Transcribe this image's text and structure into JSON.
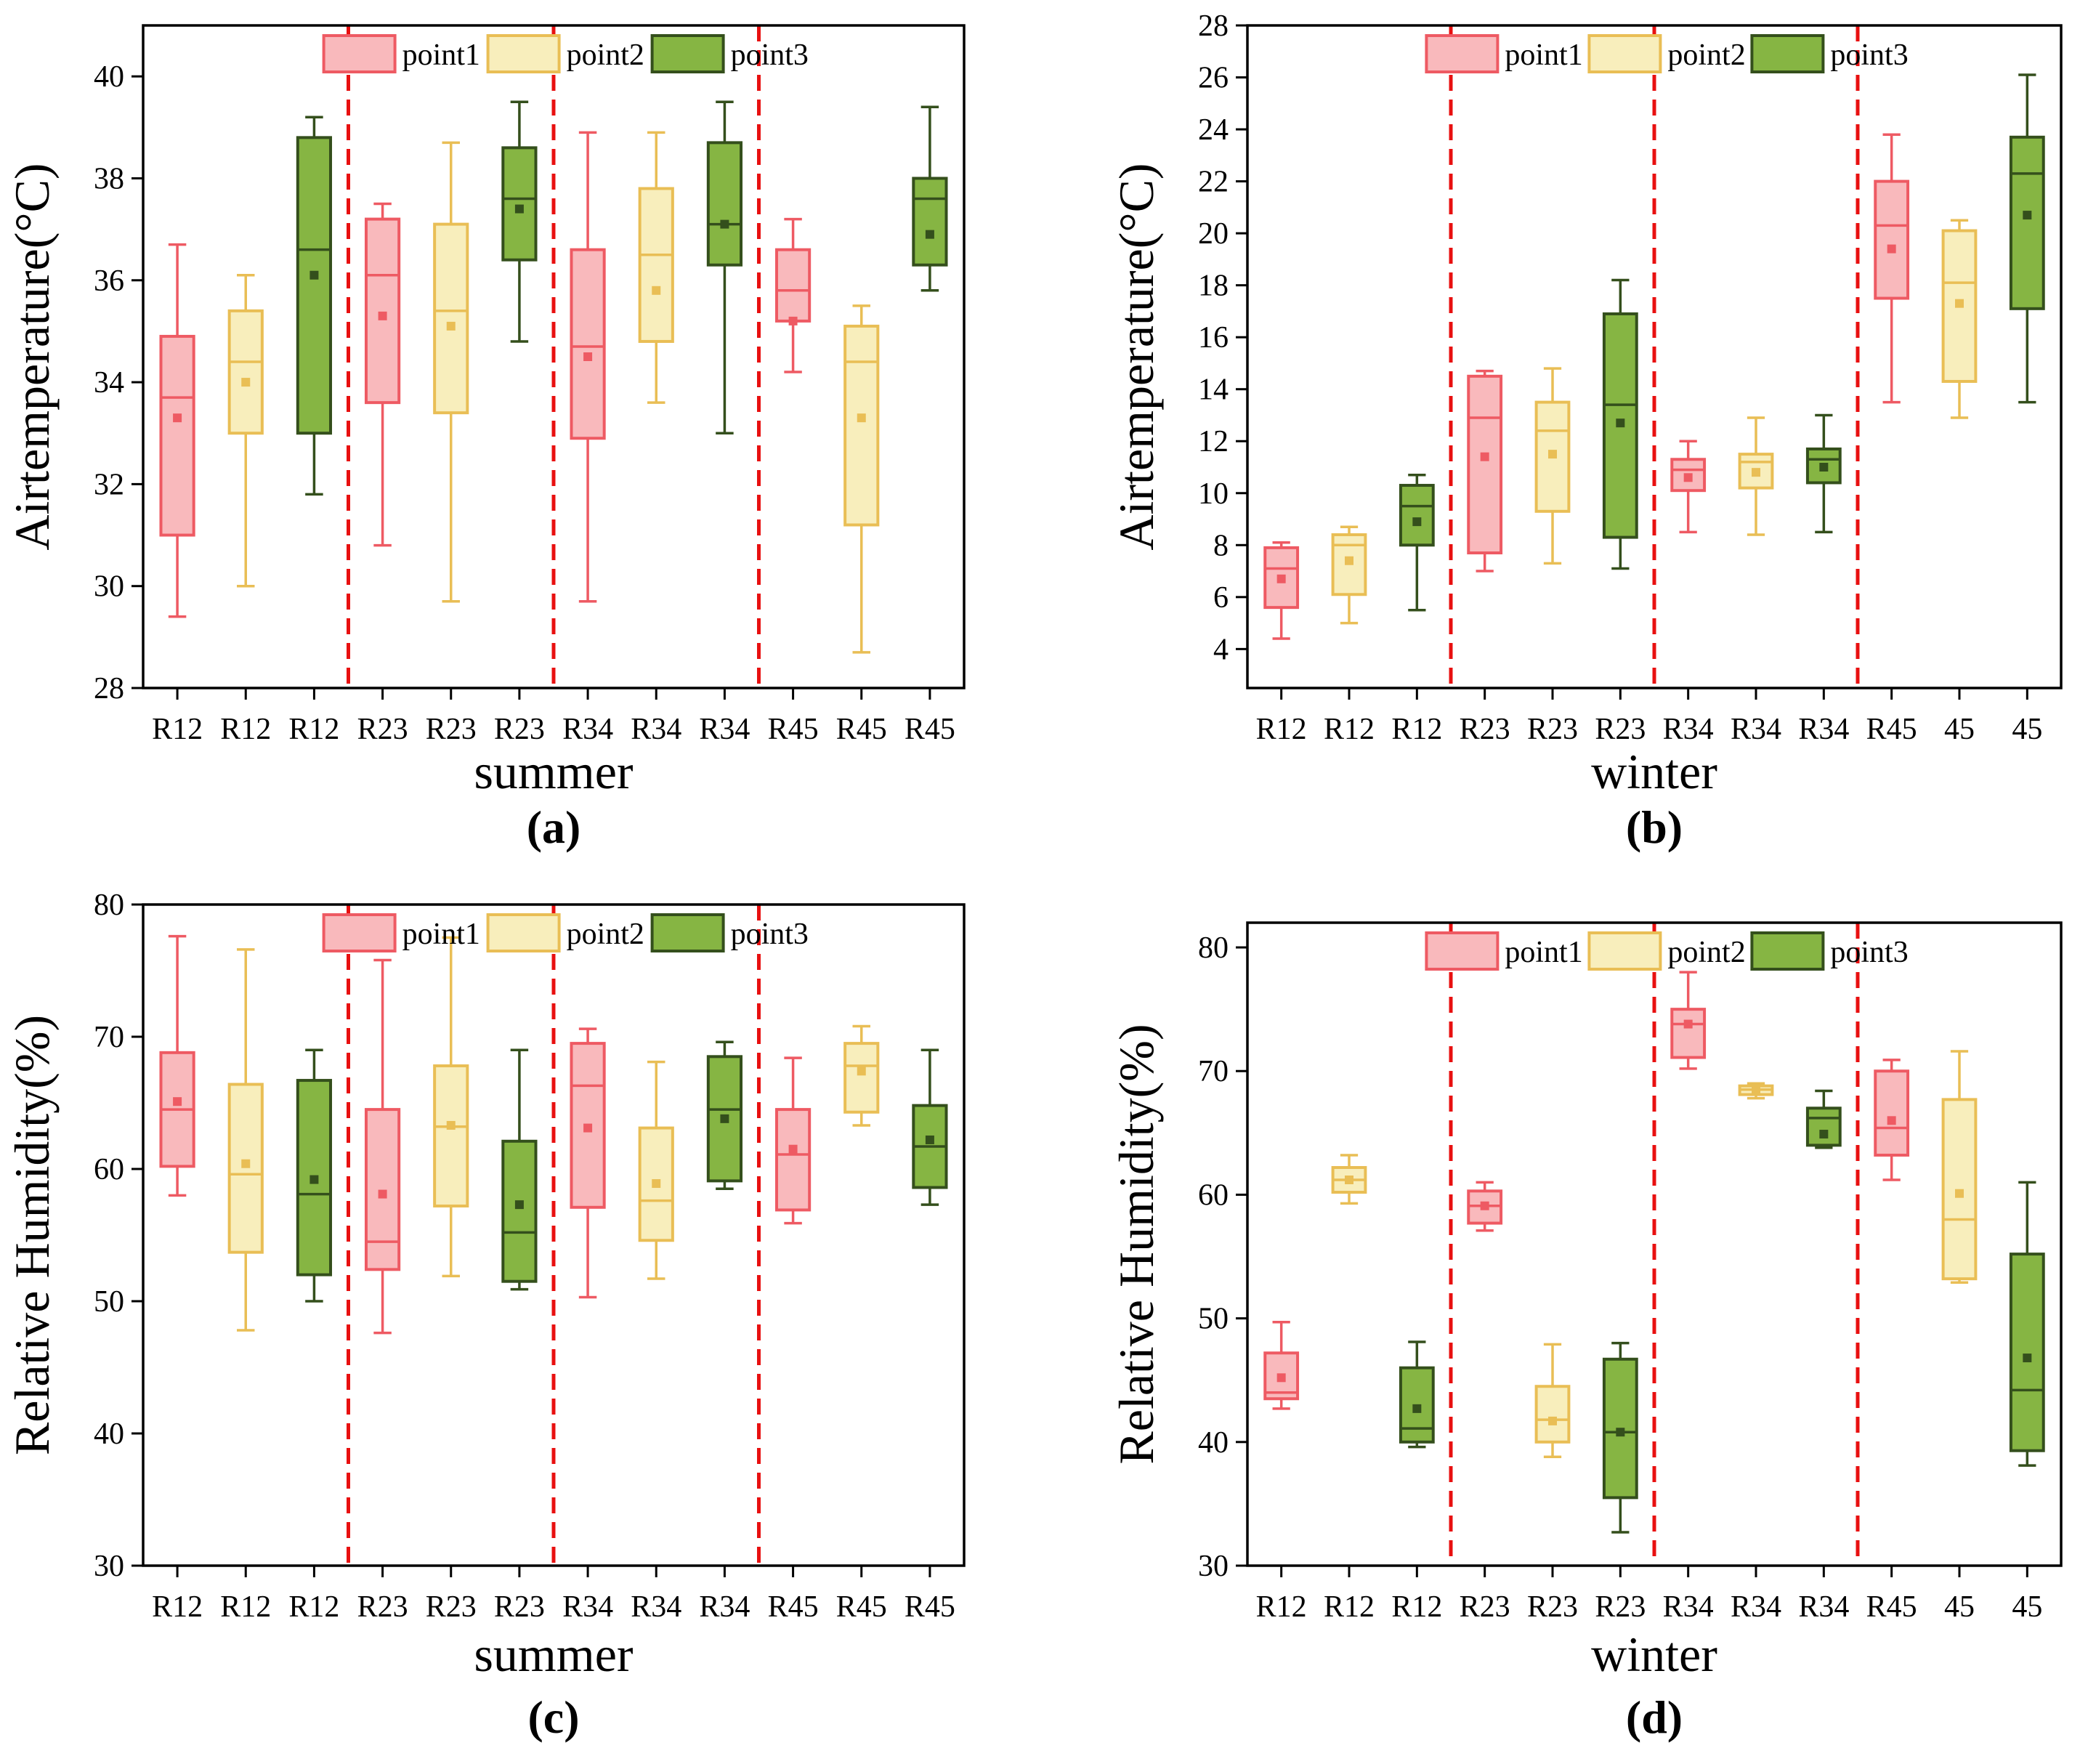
{
  "colors": {
    "point1_fill": "#F9B9BC",
    "point1_stroke": "#EE5A63",
    "point2_fill": "#F8EEBC",
    "point2_stroke": "#E9BE55",
    "point3_fill": "#86B543",
    "point3_stroke": "#344F1C",
    "separator": "#E81010",
    "axis": "#000000"
  },
  "chart_data": [
    {
      "id": "a",
      "type": "box",
      "caption": "(a)",
      "xlabel": "summer",
      "ylabel": "Airtemperature(°C)",
      "ylim": [
        28,
        41
      ],
      "yticks": [
        28,
        30,
        32,
        34,
        36,
        38,
        40
      ],
      "categories": [
        "R12",
        "R12",
        "R12",
        "R23",
        "R23",
        "R23",
        "R34",
        "R34",
        "R34",
        "R45",
        "R45",
        "R45"
      ],
      "legend": [
        "point1",
        "point2",
        "point3"
      ],
      "separators_after": [
        3,
        6,
        9
      ],
      "boxes": [
        {
          "series": "point1",
          "min": 29.4,
          "q1": 31.0,
          "median": 33.7,
          "q3": 34.9,
          "max": 36.7,
          "mean": 33.3
        },
        {
          "series": "point2",
          "min": 30.0,
          "q1": 33.0,
          "median": 34.4,
          "q3": 35.4,
          "max": 36.1,
          "mean": 34.0
        },
        {
          "series": "point3",
          "min": 31.8,
          "q1": 33.0,
          "median": 36.6,
          "q3": 38.8,
          "max": 39.2,
          "mean": 36.1
        },
        {
          "series": "point1",
          "min": 30.8,
          "q1": 33.6,
          "median": 36.1,
          "q3": 37.2,
          "max": 37.5,
          "mean": 35.3
        },
        {
          "series": "point2",
          "min": 29.7,
          "q1": 33.4,
          "median": 35.4,
          "q3": 37.1,
          "max": 38.7,
          "mean": 35.1
        },
        {
          "series": "point3",
          "min": 34.8,
          "q1": 36.4,
          "median": 37.6,
          "q3": 38.6,
          "max": 39.5,
          "mean": 37.4
        },
        {
          "series": "point1",
          "min": 29.7,
          "q1": 32.9,
          "median": 34.7,
          "q3": 36.6,
          "max": 38.9,
          "mean": 34.5
        },
        {
          "series": "point2",
          "min": 33.6,
          "q1": 34.8,
          "median": 36.5,
          "q3": 37.8,
          "max": 38.9,
          "mean": 35.8
        },
        {
          "series": "point3",
          "min": 33.0,
          "q1": 36.3,
          "median": 37.1,
          "q3": 38.7,
          "max": 39.5,
          "mean": 37.1
        },
        {
          "series": "point1",
          "min": 34.2,
          "q1": 35.2,
          "median": 35.8,
          "q3": 36.6,
          "max": 37.2,
          "mean": 35.2
        },
        {
          "series": "point2",
          "min": 28.7,
          "q1": 31.2,
          "median": 34.4,
          "q3": 35.1,
          "max": 35.5,
          "mean": 33.3
        },
        {
          "series": "point3",
          "min": 35.8,
          "q1": 36.3,
          "median": 37.6,
          "q3": 38.0,
          "max": 39.4,
          "mean": 36.9
        }
      ]
    },
    {
      "id": "b",
      "type": "box",
      "caption": "(b)",
      "xlabel": "winter",
      "ylabel": "Airtemperature(°C)",
      "ylim": [
        2.5,
        28
      ],
      "yticks": [
        4,
        6,
        8,
        10,
        12,
        14,
        16,
        18,
        20,
        22,
        24,
        26,
        28
      ],
      "categories": [
        "R12",
        "R12",
        "R12",
        "R23",
        "R23",
        "R23",
        "R34",
        "R34",
        "R34",
        "R45",
        "45",
        "45"
      ],
      "legend": [
        "point1",
        "point2",
        "point3"
      ],
      "separators_after": [
        3,
        6,
        9
      ],
      "boxes": [
        {
          "series": "point1",
          "min": 4.4,
          "q1": 5.6,
          "median": 7.1,
          "q3": 7.9,
          "max": 8.1,
          "mean": 6.7
        },
        {
          "series": "point2",
          "min": 5.0,
          "q1": 6.1,
          "median": 8.0,
          "q3": 8.4,
          "max": 8.7,
          "mean": 7.4
        },
        {
          "series": "point3",
          "min": 5.5,
          "q1": 8.0,
          "median": 9.5,
          "q3": 10.3,
          "max": 10.7,
          "mean": 8.9
        },
        {
          "series": "point1",
          "min": 7.0,
          "q1": 7.7,
          "median": 12.9,
          "q3": 14.5,
          "max": 14.7,
          "mean": 11.4
        },
        {
          "series": "point2",
          "min": 7.3,
          "q1": 9.3,
          "median": 12.4,
          "q3": 13.5,
          "max": 14.8,
          "mean": 11.5
        },
        {
          "series": "point3",
          "min": 7.1,
          "q1": 8.3,
          "median": 13.4,
          "q3": 16.9,
          "max": 18.2,
          "mean": 12.7
        },
        {
          "series": "point1",
          "min": 8.5,
          "q1": 10.1,
          "median": 10.9,
          "q3": 11.3,
          "max": 12.0,
          "mean": 10.6
        },
        {
          "series": "point2",
          "min": 8.4,
          "q1": 10.2,
          "median": 11.2,
          "q3": 11.5,
          "max": 12.9,
          "mean": 10.8
        },
        {
          "series": "point3",
          "min": 8.5,
          "q1": 10.4,
          "median": 11.3,
          "q3": 11.7,
          "max": 13.0,
          "mean": 11.0
        },
        {
          "series": "point1",
          "min": 13.5,
          "q1": 17.5,
          "median": 20.3,
          "q3": 22.0,
          "max": 23.8,
          "mean": 19.4
        },
        {
          "series": "point2",
          "min": 12.9,
          "q1": 14.3,
          "median": 18.1,
          "q3": 20.1,
          "max": 20.5,
          "mean": 17.3
        },
        {
          "series": "point3",
          "min": 13.5,
          "q1": 17.1,
          "median": 22.3,
          "q3": 23.7,
          "max": 26.1,
          "mean": 20.7
        }
      ]
    },
    {
      "id": "c",
      "type": "box",
      "caption": "(c)",
      "xlabel": "summer",
      "ylabel": "Relative Humidity(%)",
      "ylim": [
        30,
        80
      ],
      "yticks": [
        30,
        40,
        50,
        60,
        70,
        80
      ],
      "categories": [
        "R12",
        "R12",
        "R12",
        "R23",
        "R23",
        "R23",
        "R34",
        "R34",
        "R34",
        "R45",
        "R45",
        "R45"
      ],
      "legend": [
        "point1",
        "point2",
        "point3"
      ],
      "separators_after": [
        3,
        6,
        9
      ],
      "boxes": [
        {
          "series": "point1",
          "min": 58.0,
          "q1": 60.2,
          "median": 64.5,
          "q3": 68.8,
          "max": 77.6,
          "mean": 65.1
        },
        {
          "series": "point2",
          "min": 47.8,
          "q1": 53.7,
          "median": 59.6,
          "q3": 66.4,
          "max": 76.6,
          "mean": 60.4
        },
        {
          "series": "point3",
          "min": 50.0,
          "q1": 52.0,
          "median": 58.1,
          "q3": 66.7,
          "max": 69.0,
          "mean": 59.2
        },
        {
          "series": "point1",
          "min": 47.6,
          "q1": 52.4,
          "median": 54.5,
          "q3": 64.5,
          "max": 75.8,
          "mean": 58.1
        },
        {
          "series": "point2",
          "min": 51.9,
          "q1": 57.2,
          "median": 63.2,
          "q3": 67.8,
          "max": 77.5,
          "mean": 63.3
        },
        {
          "series": "point3",
          "min": 50.9,
          "q1": 51.5,
          "median": 55.2,
          "q3": 62.1,
          "max": 69.0,
          "mean": 57.3
        },
        {
          "series": "point1",
          "min": 50.3,
          "q1": 57.1,
          "median": 66.3,
          "q3": 69.5,
          "max": 70.6,
          "mean": 63.1
        },
        {
          "series": "point2",
          "min": 51.7,
          "q1": 54.6,
          "median": 57.6,
          "q3": 63.1,
          "max": 68.1,
          "mean": 58.9
        },
        {
          "series": "point3",
          "min": 58.5,
          "q1": 59.1,
          "median": 64.5,
          "q3": 68.5,
          "max": 69.6,
          "mean": 63.8
        },
        {
          "series": "point1",
          "min": 55.9,
          "q1": 56.9,
          "median": 61.1,
          "q3": 64.5,
          "max": 68.4,
          "mean": 61.5
        },
        {
          "series": "point2",
          "min": 63.3,
          "q1": 64.3,
          "median": 67.8,
          "q3": 69.5,
          "max": 70.8,
          "mean": 67.4
        },
        {
          "series": "point3",
          "min": 57.3,
          "q1": 58.6,
          "median": 61.7,
          "q3": 64.8,
          "max": 69.0,
          "mean": 62.2
        }
      ]
    },
    {
      "id": "d",
      "type": "box",
      "caption": "(d)",
      "xlabel": "winter",
      "ylabel": "Relative Humidity(%)",
      "ylim": [
        30,
        82
      ],
      "yticks": [
        30,
        40,
        50,
        60,
        70,
        80
      ],
      "categories": [
        "R12",
        "R12",
        "R12",
        "R23",
        "R23",
        "R23",
        "R34",
        "R34",
        "R34",
        "R45",
        "45",
        "45"
      ],
      "legend": [
        "point1",
        "point2",
        "point3"
      ],
      "separators_after": [
        3,
        6,
        9
      ],
      "boxes": [
        {
          "series": "point1",
          "min": 42.7,
          "q1": 43.5,
          "median": 44.0,
          "q3": 47.2,
          "max": 49.7,
          "mean": 45.2
        },
        {
          "series": "point2",
          "min": 59.3,
          "q1": 60.2,
          "median": 61.2,
          "q3": 62.2,
          "max": 63.2,
          "mean": 61.2
        },
        {
          "series": "point3",
          "min": 39.6,
          "q1": 40.0,
          "median": 41.1,
          "q3": 46.0,
          "max": 48.1,
          "mean": 42.7
        },
        {
          "series": "point1",
          "min": 57.1,
          "q1": 57.7,
          "median": 59.1,
          "q3": 60.3,
          "max": 61.0,
          "mean": 59.1
        },
        {
          "series": "point2",
          "min": 38.8,
          "q1": 40.0,
          "median": 41.8,
          "q3": 44.5,
          "max": 47.9,
          "mean": 41.7
        },
        {
          "series": "point3",
          "min": 32.7,
          "q1": 35.5,
          "median": 40.8,
          "q3": 46.7,
          "max": 48.0,
          "mean": 40.8
        },
        {
          "series": "point1",
          "min": 70.2,
          "q1": 71.1,
          "median": 73.8,
          "q3": 75.0,
          "max": 78.0,
          "mean": 73.8
        },
        {
          "series": "point2",
          "min": 67.8,
          "q1": 68.1,
          "median": 68.5,
          "q3": 68.8,
          "max": 69.0,
          "mean": 68.4
        },
        {
          "series": "point3",
          "min": 63.8,
          "q1": 64.0,
          "median": 66.2,
          "q3": 67.0,
          "max": 68.4,
          "mean": 64.9
        },
        {
          "series": "point1",
          "min": 61.2,
          "q1": 63.2,
          "median": 65.4,
          "q3": 70.0,
          "max": 70.9,
          "mean": 66.0
        },
        {
          "series": "point2",
          "min": 52.9,
          "q1": 53.2,
          "median": 58.0,
          "q3": 67.7,
          "max": 71.6,
          "mean": 60.1
        },
        {
          "series": "point3",
          "min": 38.1,
          "q1": 39.3,
          "median": 44.2,
          "q3": 55.2,
          "max": 61.0,
          "mean": 46.8
        }
      ]
    }
  ]
}
